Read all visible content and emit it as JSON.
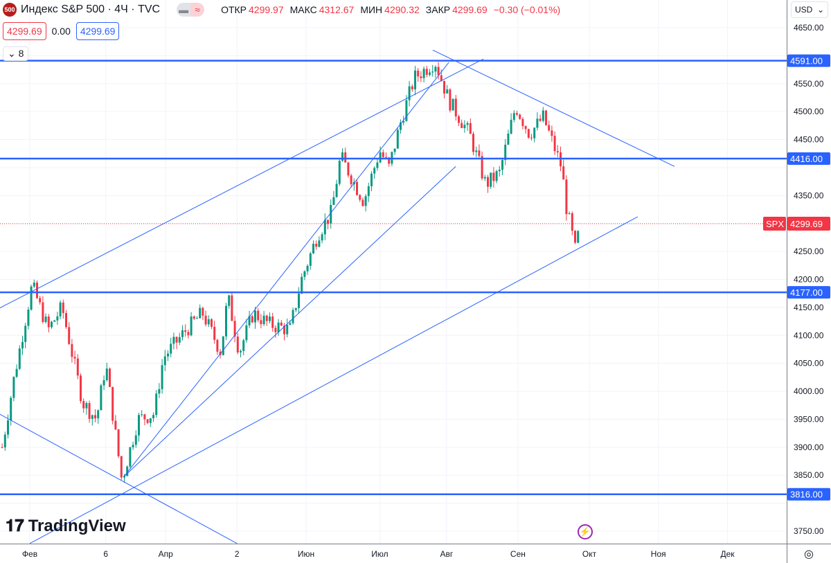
{
  "header": {
    "badge": "500",
    "title": "Индекс S&P 500 · 4Ч · TVC",
    "open_label": "ОТКР",
    "open": "4299.97",
    "high_label": "МАКС",
    "high": "4312.67",
    "low_label": "МИН",
    "low": "4290.32",
    "close_label": "ЗАКР",
    "close": "4299.69",
    "change": "−0.30 (−0.01%)"
  },
  "price_boxes": {
    "bid": "4299.69",
    "spread": "0.00",
    "ask": "4299.69"
  },
  "indicators_toggle": {
    "count": "8"
  },
  "currency": "USD",
  "colors": {
    "up": "#089981",
    "down": "#f23645",
    "line": "#2962ff",
    "accent": "#f23645"
  },
  "brand": "TradingView",
  "chart_data": {
    "type": "candlestick",
    "symbol_label": "SPX",
    "last_price": 4299.69,
    "ylim": [
      3720,
      4670
    ],
    "y_ticks": [
      3750,
      3800,
      3850,
      3900,
      3950,
      4000,
      4050,
      4100,
      4150,
      4200,
      4250,
      4300,
      4350,
      4400,
      4450,
      4500,
      4550,
      4600,
      4650
    ],
    "x_ticks": [
      {
        "date": "2023-02-01",
        "label": "Фев"
      },
      {
        "date": "2023-03-06",
        "label": "6"
      },
      {
        "date": "2023-04-01",
        "label": "Апр"
      },
      {
        "date": "2023-05-02",
        "label": "2"
      },
      {
        "date": "2023-06-01",
        "label": "Июн"
      },
      {
        "date": "2023-07-03",
        "label": "Июл"
      },
      {
        "date": "2023-08-01",
        "label": "Авг"
      },
      {
        "date": "2023-09-01",
        "label": "Сен"
      },
      {
        "date": "2023-10-02",
        "label": "Окт"
      },
      {
        "date": "2023-11-01",
        "label": "Ноя"
      },
      {
        "date": "2023-12-01",
        "label": "Дек"
      }
    ],
    "approx_closes": [
      [
        "2023-01-20",
        3900
      ],
      [
        "2023-01-25",
        4020
      ],
      [
        "2023-02-02",
        4190
      ],
      [
        "2023-02-09",
        4110
      ],
      [
        "2023-02-15",
        4150
      ],
      [
        "2023-02-24",
        3980
      ],
      [
        "2023-03-02",
        3950
      ],
      [
        "2023-03-06",
        4050
      ],
      [
        "2023-03-13",
        3840
      ],
      [
        "2023-03-20",
        3950
      ],
      [
        "2023-03-27",
        3960
      ],
      [
        "2023-03-31",
        4060
      ],
      [
        "2023-04-10",
        4110
      ],
      [
        "2023-04-17",
        4140
      ],
      [
        "2023-04-25",
        4070
      ],
      [
        "2023-04-28",
        4170
      ],
      [
        "2023-05-03",
        4070
      ],
      [
        "2023-05-09",
        4140
      ],
      [
        "2023-05-16",
        4120
      ],
      [
        "2023-05-25",
        4110
      ],
      [
        "2023-05-30",
        4200
      ],
      [
        "2023-06-06",
        4280
      ],
      [
        "2023-06-12",
        4320
      ],
      [
        "2023-06-16",
        4420
      ],
      [
        "2023-06-26",
        4340
      ],
      [
        "2023-07-03",
        4430
      ],
      [
        "2023-07-07",
        4400
      ],
      [
        "2023-07-12",
        4480
      ],
      [
        "2023-07-18",
        4560
      ],
      [
        "2023-07-27",
        4590
      ],
      [
        "2023-08-02",
        4520
      ],
      [
        "2023-08-11",
        4460
      ],
      [
        "2023-08-18",
        4370
      ],
      [
        "2023-08-24",
        4390
      ],
      [
        "2023-08-31",
        4510
      ],
      [
        "2023-09-06",
        4460
      ],
      [
        "2023-09-12",
        4490
      ],
      [
        "2023-09-20",
        4400
      ],
      [
        "2023-09-22",
        4330
      ],
      [
        "2023-09-26",
        4250
      ],
      [
        "2023-09-28",
        4300
      ]
    ],
    "horizontal_levels": [
      4591,
      4416,
      4177,
      3816
    ],
    "trendlines": [
      [
        [
          "2023-01-19",
          4149
        ],
        [
          "2023-08-17",
          4594
        ]
      ],
      [
        [
          "2023-01-19",
          3959
        ],
        [
          "2023-05-02",
          3728
        ]
      ],
      [
        [
          "2023-03-14",
          3848
        ],
        [
          "2023-08-05",
          4402
        ]
      ],
      [
        [
          "2023-02-01",
          3728
        ],
        [
          "2023-10-23",
          4312
        ]
      ],
      [
        [
          "2023-03-14",
          3848
        ],
        [
          "2023-08-02",
          4588
        ]
      ],
      [
        [
          "2023-07-26",
          4610
        ],
        [
          "2023-11-08",
          4402
        ]
      ]
    ]
  }
}
